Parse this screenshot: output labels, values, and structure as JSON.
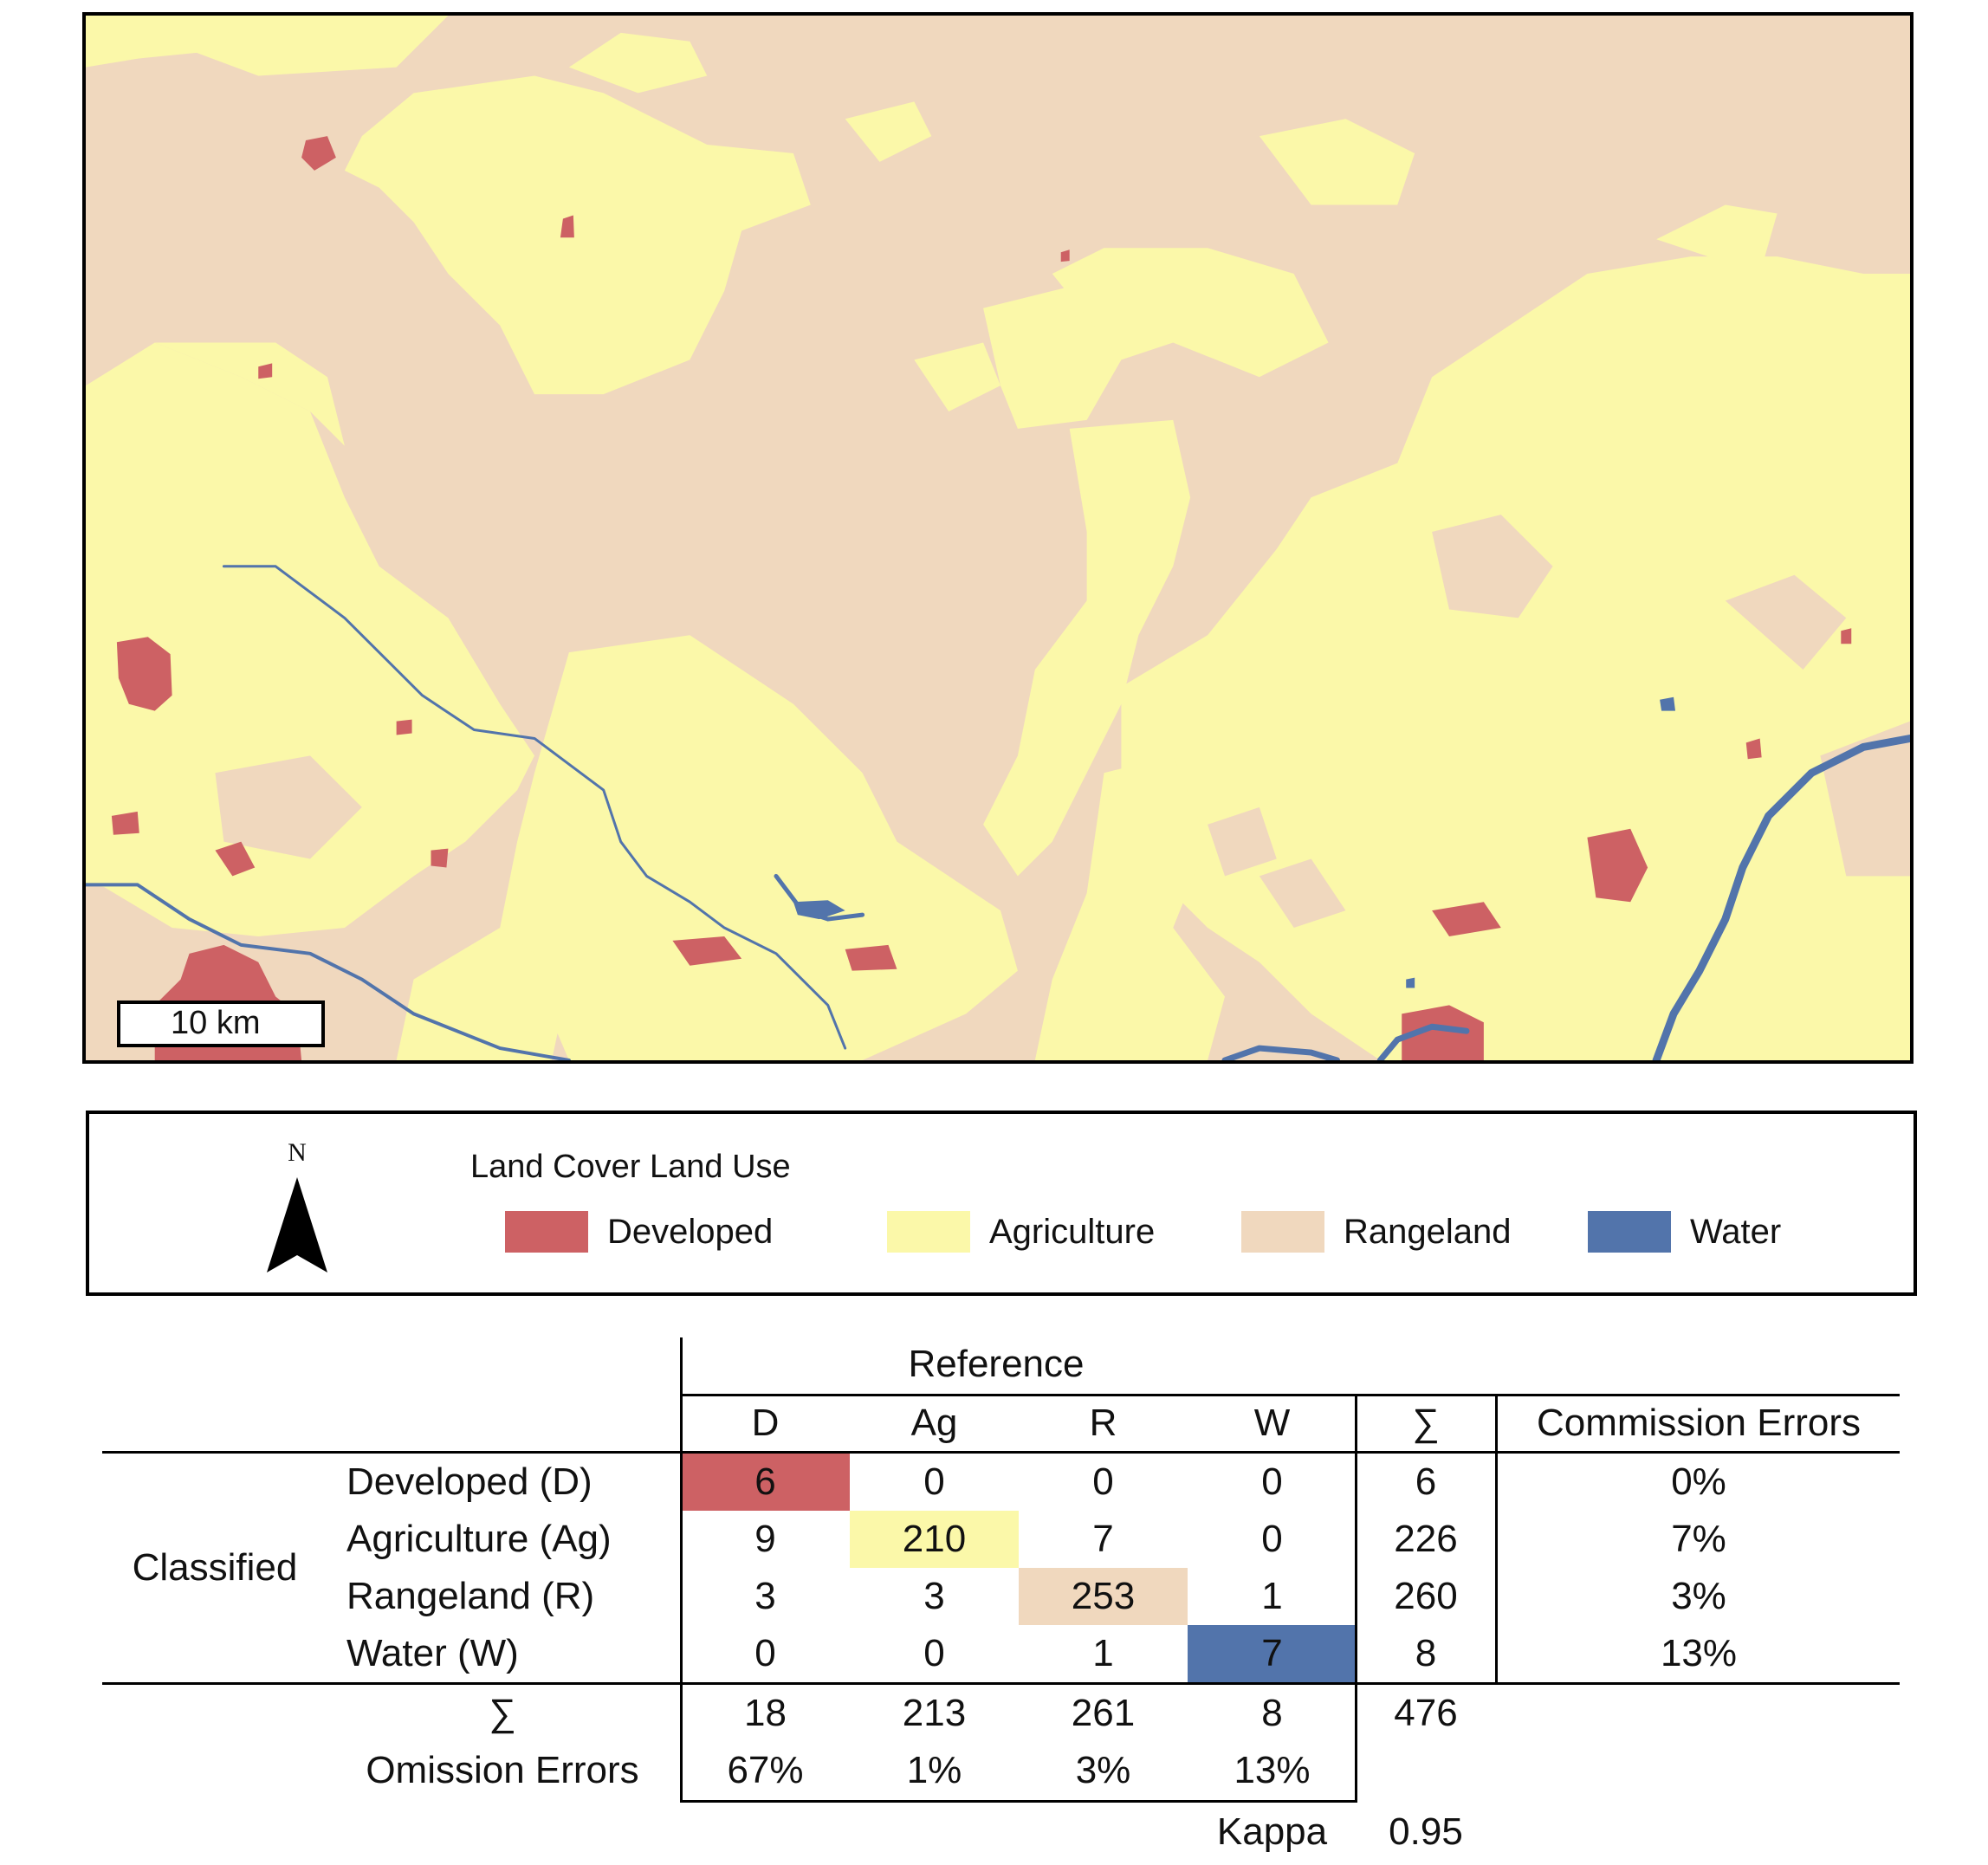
{
  "map": {
    "scale_bar_label": "10 km",
    "north_label": "N",
    "colors": {
      "developed": "#cd6164",
      "agriculture": "#fbf8a9",
      "rangeland": "#f0d8be",
      "water": "#5274ab"
    }
  },
  "legend": {
    "title": "Land Cover Land Use",
    "items": [
      {
        "label": "Developed",
        "color": "#cd6164"
      },
      {
        "label": "Agriculture",
        "color": "#fbf8a9"
      },
      {
        "label": "Rangeland",
        "color": "#f0d8be"
      },
      {
        "label": "Water",
        "color": "#5274ab"
      }
    ]
  },
  "confusion_matrix": {
    "reference_label": "Reference",
    "classified_label": "Classified",
    "column_headers": [
      "D",
      "Ag",
      "R",
      "W",
      "∑",
      "Commission Errors"
    ],
    "rows": [
      {
        "label": "Developed (D)",
        "values": [
          "6",
          "0",
          "0",
          "0"
        ],
        "sum": "6",
        "commission": "0%"
      },
      {
        "label": "Agriculture (Ag)",
        "values": [
          "9",
          "210",
          "7",
          "0"
        ],
        "sum": "226",
        "commission": "7%"
      },
      {
        "label": "Rangeland (R)",
        "values": [
          "3",
          "3",
          "253",
          "1"
        ],
        "sum": "260",
        "commission": "3%"
      },
      {
        "label": "Water (W)",
        "values": [
          "0",
          "0",
          "1",
          "7"
        ],
        "sum": "8",
        "commission": "13%"
      }
    ],
    "column_sum_label": "∑",
    "column_sums": [
      "18",
      "213",
      "261",
      "8"
    ],
    "total": "476",
    "omission_label": "Omission Errors",
    "omission_errors": [
      "67%",
      "1%",
      "3%",
      "13%"
    ],
    "kappa_label": "Kappa",
    "kappa_value": "0.95"
  }
}
